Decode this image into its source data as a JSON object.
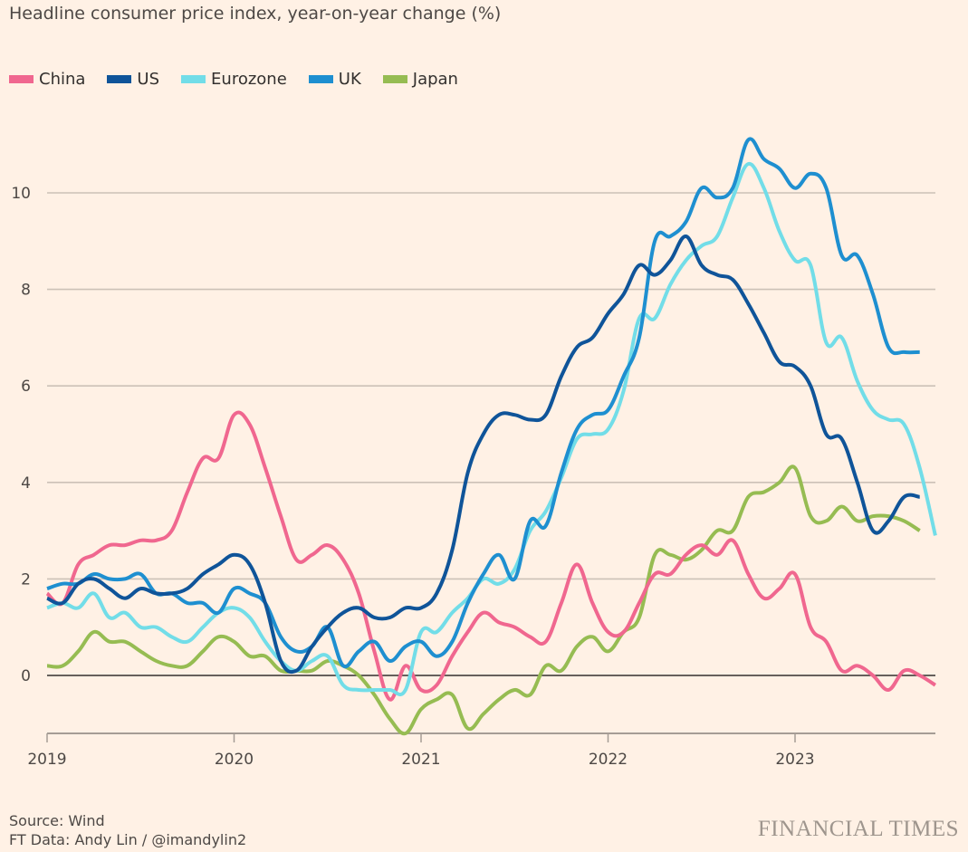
{
  "header": {
    "title": "Headline consumer price index, year-on-year change (%)"
  },
  "footer": {
    "source": "Source: Wind",
    "credit": "FT Data: Andy Lin / @imandylin2",
    "logo": "FINANCIAL TIMES"
  },
  "chart_data": {
    "type": "line",
    "title": "Headline consumer price index, year-on-year change (%)",
    "xlabel": "",
    "ylabel": "",
    "x_start": "2019-01",
    "x_frequency": "monthly",
    "x_ticks": [
      "2019",
      "2020",
      "2021",
      "2022",
      "2023"
    ],
    "y_ticks": [
      0,
      2,
      4,
      6,
      8,
      10
    ],
    "ylim": [
      -1.2,
      11.5
    ],
    "xlim": [
      "2019-01",
      "2023-10"
    ],
    "grid": true,
    "legend_position": "top-left",
    "series": [
      {
        "name": "China",
        "color": "#f0678f",
        "values": [
          1.7,
          1.5,
          2.3,
          2.5,
          2.7,
          2.7,
          2.8,
          2.8,
          3.0,
          3.8,
          4.5,
          4.5,
          5.4,
          5.2,
          4.3,
          3.3,
          2.4,
          2.5,
          2.7,
          2.4,
          1.7,
          0.5,
          -0.5,
          0.2,
          -0.3,
          -0.2,
          0.4,
          0.9,
          1.3,
          1.1,
          1.0,
          0.8,
          0.7,
          1.5,
          2.3,
          1.5,
          0.9,
          0.9,
          1.5,
          2.1,
          2.1,
          2.5,
          2.7,
          2.5,
          2.8,
          2.1,
          1.6,
          1.8,
          2.1,
          1.0,
          0.7,
          0.1,
          0.2,
          0.0,
          -0.3,
          0.1,
          0.0,
          -0.2
        ]
      },
      {
        "name": "US",
        "color": "#0f5499",
        "values": [
          1.6,
          1.5,
          1.9,
          2.0,
          1.8,
          1.6,
          1.8,
          1.7,
          1.7,
          1.8,
          2.1,
          2.3,
          2.5,
          2.3,
          1.5,
          0.3,
          0.1,
          0.6,
          1.0,
          1.3,
          1.4,
          1.2,
          1.2,
          1.4,
          1.4,
          1.7,
          2.6,
          4.2,
          5.0,
          5.4,
          5.4,
          5.3,
          5.4,
          6.2,
          6.8,
          7.0,
          7.5,
          7.9,
          8.5,
          8.3,
          8.6,
          9.1,
          8.5,
          8.3,
          8.2,
          7.7,
          7.1,
          6.5,
          6.4,
          6.0,
          5.0,
          4.9,
          4.0,
          3.0,
          3.2,
          3.7,
          3.7
        ]
      },
      {
        "name": "Eurozone",
        "color": "#72dde8",
        "values": [
          1.4,
          1.5,
          1.4,
          1.7,
          1.2,
          1.3,
          1.0,
          1.0,
          0.8,
          0.7,
          1.0,
          1.3,
          1.4,
          1.2,
          0.7,
          0.3,
          0.1,
          0.3,
          0.4,
          -0.2,
          -0.3,
          -0.3,
          -0.3,
          -0.3,
          0.9,
          0.9,
          1.3,
          1.6,
          2.0,
          1.9,
          2.2,
          3.0,
          3.4,
          4.1,
          4.9,
          5.0,
          5.1,
          5.9,
          7.4,
          7.4,
          8.1,
          8.6,
          8.9,
          9.1,
          9.9,
          10.6,
          10.1,
          9.2,
          8.6,
          8.5,
          6.9,
          7.0,
          6.1,
          5.5,
          5.3,
          5.2,
          4.3,
          2.9
        ]
      },
      {
        "name": "UK",
        "color": "#1e8fd0",
        "values": [
          1.8,
          1.9,
          1.9,
          2.1,
          2.0,
          2.0,
          2.1,
          1.7,
          1.7,
          1.5,
          1.5,
          1.3,
          1.8,
          1.7,
          1.5,
          0.8,
          0.5,
          0.6,
          1.0,
          0.2,
          0.5,
          0.7,
          0.3,
          0.6,
          0.7,
          0.4,
          0.7,
          1.5,
          2.1,
          2.5,
          2.0,
          3.2,
          3.1,
          4.2,
          5.1,
          5.4,
          5.5,
          6.2,
          7.0,
          9.0,
          9.1,
          9.4,
          10.1,
          9.9,
          10.1,
          11.1,
          10.7,
          10.5,
          10.1,
          10.4,
          10.1,
          8.7,
          8.7,
          7.9,
          6.8,
          6.7,
          6.7
        ]
      },
      {
        "name": "Japan",
        "color": "#96bc52",
        "values": [
          0.2,
          0.2,
          0.5,
          0.9,
          0.7,
          0.7,
          0.5,
          0.3,
          0.2,
          0.2,
          0.5,
          0.8,
          0.7,
          0.4,
          0.4,
          0.1,
          0.1,
          0.1,
          0.3,
          0.2,
          0.0,
          -0.4,
          -0.9,
          -1.2,
          -0.7,
          -0.5,
          -0.4,
          -1.1,
          -0.8,
          -0.5,
          -0.3,
          -0.4,
          0.2,
          0.1,
          0.6,
          0.8,
          0.5,
          0.9,
          1.2,
          2.5,
          2.5,
          2.4,
          2.6,
          3.0,
          3.0,
          3.7,
          3.8,
          4.0,
          4.3,
          3.3,
          3.2,
          3.5,
          3.2,
          3.3,
          3.3,
          3.2,
          3.0
        ]
      }
    ]
  }
}
